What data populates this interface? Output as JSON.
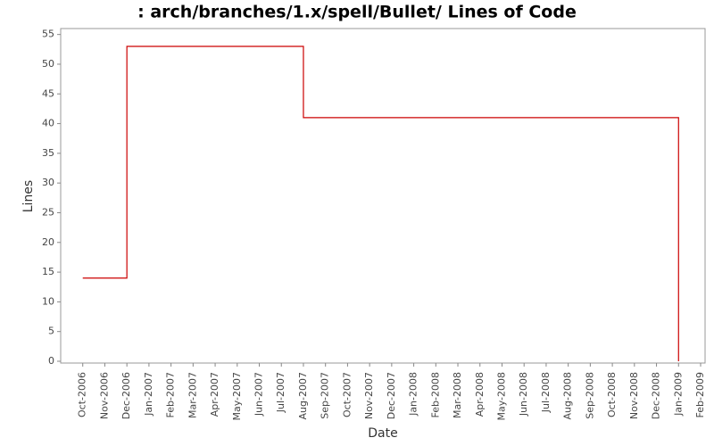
{
  "chart_data": {
    "type": "line",
    "step": true,
    "title": ": arch/branches/1.x/spell/Bullet/ Lines of Code",
    "xlabel": "Date",
    "ylabel": "Lines",
    "x": [
      "Oct-2006",
      "Dec-2006",
      "Aug-2007",
      "Jan-2009"
    ],
    "series": [
      {
        "color": "#cc0000",
        "values": [
          14,
          53,
          41,
          0
        ]
      }
    ],
    "xlim": [
      "Sep-2006",
      "Feb-2009"
    ],
    "xticks": [
      "Oct-2006",
      "Nov-2006",
      "Dec-2006",
      "Jan-2007",
      "Feb-2007",
      "Mar-2007",
      "Apr-2007",
      "May-2007",
      "Jun-2007",
      "Jul-2007",
      "Aug-2007",
      "Sep-2007",
      "Oct-2007",
      "Nov-2007",
      "Dec-2007",
      "Jan-2008",
      "Feb-2008",
      "Mar-2008",
      "Apr-2008",
      "May-2008",
      "Jun-2008",
      "Jul-2008",
      "Aug-2008",
      "Sep-2008",
      "Oct-2008",
      "Nov-2008",
      "Dec-2008",
      "Jan-2009",
      "Feb-2009"
    ],
    "ylim": [
      0,
      56
    ],
    "yticks": [
      0,
      5,
      10,
      15,
      20,
      25,
      30,
      35,
      40,
      45,
      50,
      55
    ],
    "grid": false
  }
}
